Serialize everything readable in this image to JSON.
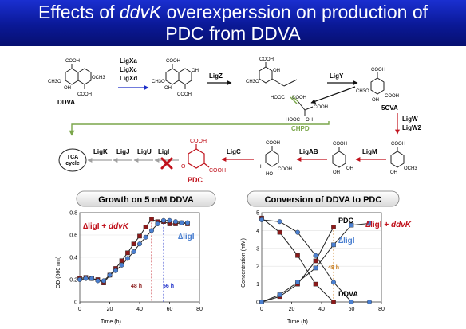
{
  "title": {
    "line1_a": "Effects of ",
    "line1_gene": "ddvK",
    "line1_b": " overexperssion on production of",
    "line2": "PDC from DDVA"
  },
  "pathway": {
    "groups": {
      "cooh": "COOH",
      "och3": "OCH3",
      "ch3o": "CH3O",
      "oh": "OH",
      "hooc": "HOOC",
      "ho": "HO",
      "h": "H",
      "o": "O"
    },
    "compounds": {
      "ddva": "DDVA",
      "cva5": "5CVA",
      "chpd": "CHPD",
      "pdc": "PDC",
      "tca_line1": "TCA",
      "tca_line2": "cycle"
    },
    "enzymes": {
      "ligxa": "LigXa",
      "ligxc": "LigXc",
      "ligxd": "LigXd",
      "ligz": "LigZ",
      "ligy": "LigY",
      "ligw": "LigW",
      "ligw2": "LigW2",
      "ligm": "LigM",
      "ligab": "LigAB",
      "ligc": "LigC",
      "ligi": "LigI",
      "ligu": "LigU",
      "ligj": "LigJ",
      "ligk": "LigK"
    },
    "colors": {
      "green": "#7aa64a",
      "red": "#c0121c",
      "blue": "#1a2cc8",
      "gray": "#a0a0a0"
    }
  },
  "growth_panel": {
    "header": "Growth on 5 mM DDVA",
    "label_mut": "∆ligI",
    "label_ddvk_a": "∆ligI + ",
    "label_ddvk_b": "ddvK",
    "marker_48": "48 h",
    "marker_56": "56 h"
  },
  "conversion_panel": {
    "header": "Conversion of DDVA to PDC",
    "label_pdc": "PDC",
    "label_ddvk_a": "∆ligI + ",
    "label_ddvk_b": "ddvK",
    "label_mut": "∆ligI",
    "marker_48": "48 h",
    "label_ddva": "DDVA"
  },
  "chart_data": [
    {
      "type": "line",
      "title": "Growth on 5 mM DDVA",
      "xlabel": "Time (h)",
      "ylabel": "OD (660 nm)",
      "xlim": [
        0,
        80
      ],
      "ylim": [
        0,
        0.8
      ],
      "xticks": [
        0,
        20,
        40,
        60,
        80
      ],
      "yticks": [
        0,
        0.2,
        0.4,
        0.6,
        0.8
      ],
      "series": [
        {
          "name": "∆ligI + ddvK",
          "color": "#8b1a1a",
          "marker": "square",
          "x": [
            0,
            4,
            8,
            12,
            16,
            20,
            24,
            28,
            32,
            36,
            40,
            44,
            48,
            52,
            56,
            60,
            64,
            68,
            72
          ],
          "y": [
            0.21,
            0.22,
            0.21,
            0.2,
            0.17,
            0.24,
            0.3,
            0.37,
            0.44,
            0.52,
            0.59,
            0.67,
            0.74,
            0.72,
            0.72,
            0.7,
            0.7,
            0.71,
            0.7
          ]
        },
        {
          "name": "∆ligI",
          "color": "#4a7fd0",
          "marker": "circle",
          "x": [
            0,
            4,
            8,
            12,
            16,
            20,
            24,
            28,
            32,
            36,
            40,
            44,
            48,
            52,
            56,
            60,
            64,
            68,
            72
          ],
          "y": [
            0.2,
            0.21,
            0.21,
            0.19,
            0.19,
            0.24,
            0.28,
            0.33,
            0.39,
            0.45,
            0.52,
            0.58,
            0.64,
            0.7,
            0.73,
            0.73,
            0.72,
            0.71,
            0.71
          ]
        }
      ]
    },
    {
      "type": "line",
      "title": "Conversion of DDVA to PDC",
      "xlabel": "Time (h)",
      "ylabel": "Concentration (mM)",
      "xlim": [
        0,
        80
      ],
      "ylim": [
        0,
        5
      ],
      "xticks": [
        0,
        20,
        40,
        60,
        80
      ],
      "yticks": [
        0,
        1,
        2,
        3,
        4,
        5
      ],
      "series": [
        {
          "name": "PDC (∆ligI + ddvK)",
          "color": "#8b1a1a",
          "marker": "square",
          "x": [
            0,
            12,
            24,
            36,
            48
          ],
          "y": [
            0.0,
            0.3,
            1.0,
            2.3,
            4.2
          ]
        },
        {
          "name": "PDC (∆ligI)",
          "color": "#4a7fd0",
          "marker": "square",
          "x": [
            0,
            12,
            24,
            36,
            48,
            60,
            72
          ],
          "y": [
            0.0,
            0.4,
            1.1,
            1.9,
            3.2,
            4.3,
            4.4
          ]
        },
        {
          "name": "DDVA (∆ligI + ddvK)",
          "color": "#8b1a1a",
          "marker": "square",
          "x": [
            0,
            12,
            24,
            36,
            48
          ],
          "y": [
            4.7,
            3.9,
            2.6,
            1.0,
            0.0
          ]
        },
        {
          "name": "DDVA (∆ligI)",
          "color": "#4a7fd0",
          "marker": "circle",
          "x": [
            0,
            12,
            24,
            36,
            48,
            60,
            72
          ],
          "y": [
            4.6,
            4.5,
            3.9,
            2.6,
            1.1,
            0.0,
            0.0
          ]
        }
      ]
    }
  ]
}
